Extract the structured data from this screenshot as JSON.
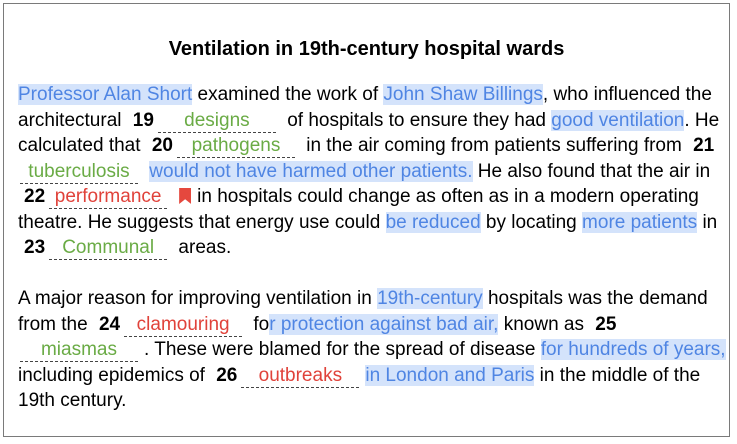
{
  "title": "Ventilation in 19th-century hospital wards",
  "p1": {
    "s1": "Professor Alan Short",
    "s2": " examined the work of ",
    "s3": "John Shaw Billings",
    "s4": ", who influenced the architectural ",
    "n19": "19",
    "a19": "designs",
    "s5": " of hospitals to ensure they had ",
    "s6": "good ventilation",
    "s7": ". He calculated that ",
    "n20": "20",
    "a20": "pathogens",
    "s8": " in the air coming from patients suffering from ",
    "n21": "21",
    "a21": "tuberculosis",
    "s9": "would not have harmed other patients.",
    "s10": " He also found that the air in ",
    "n22": "22",
    "a22": "performance",
    "s11": "in hospitals could change as often as in a modern operating theatre. He suggests that energy use could ",
    "s12": "be reduced",
    "s13": " by locating ",
    "s14": "more patients",
    "s15": " in ",
    "n23": "23",
    "a23": "Communal",
    "s16": " areas."
  },
  "p2": {
    "s1": "A major reason for improving ventilation in ",
    "s2": "19th-century",
    "s3": " hospitals was the demand from the ",
    "n24": "24",
    "a24": "clamouring",
    "s4": " fo",
    "s5": "r protection against bad air,",
    "s6": " known as ",
    "n25": "25",
    "a25": "miasmas",
    "s7": ". These were blamed for the spread of disease ",
    "s8": "for hundreds of years,",
    "s9": " including epidemics of ",
    "n26": "26",
    "a26": "outbreaks",
    "s10": "in London and Paris",
    "s11": " in the middle of the 19th century."
  },
  "colors": {
    "highlight_bg": "#d4e3fb",
    "highlight_text": "#4f85e3",
    "correct": "#6aab45",
    "wrong": "#e0423a"
  },
  "icons": {
    "flag": "bookmark-flag-icon"
  }
}
